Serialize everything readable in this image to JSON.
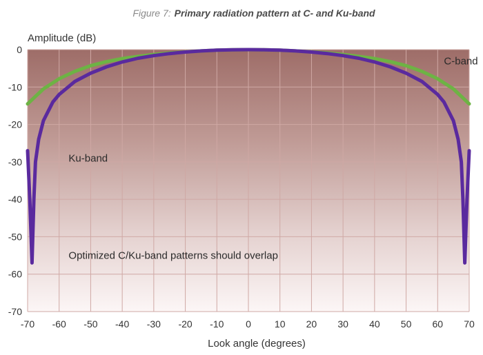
{
  "figure": {
    "prefix": "Figure 7:",
    "title": "Primary radiation pattern at C- and Ku-band"
  },
  "chart_data": {
    "type": "line",
    "ylabel": "Amplitude (dB)",
    "xlabel": "Look angle (degrees)",
    "xlim": [
      -70,
      70
    ],
    "ylim": [
      -70,
      0
    ],
    "xticks": [
      -70,
      -60,
      -50,
      -40,
      -30,
      -20,
      -10,
      0,
      10,
      20,
      30,
      40,
      50,
      60,
      70
    ],
    "yticks": [
      0,
      -10,
      -20,
      -30,
      -40,
      -50,
      -60,
      -70
    ],
    "grid": true,
    "series": [
      {
        "name": "C-band",
        "color": "#6db344",
        "x": [
          -70,
          -65,
          -60,
          -55,
          -50,
          -45,
          -40,
          -35,
          -30,
          -25,
          -20,
          -15,
          -10,
          -5,
          0,
          5,
          10,
          15,
          20,
          25,
          30,
          35,
          40,
          45,
          50,
          55,
          60,
          65,
          70
        ],
        "y": [
          -14.5,
          -10.5,
          -7.8,
          -5.8,
          -4.3,
          -3.2,
          -2.4,
          -1.8,
          -1.3,
          -0.9,
          -0.6,
          -0.35,
          -0.15,
          -0.05,
          0,
          -0.05,
          -0.15,
          -0.35,
          -0.6,
          -0.9,
          -1.3,
          -1.8,
          -2.4,
          -3.2,
          -4.3,
          -5.8,
          -7.8,
          -10.5,
          -14.5
        ]
      },
      {
        "name": "Ku-band",
        "color": "#5a2a9e",
        "x": [
          -70,
          -69.3,
          -68.6,
          -68,
          -67.5,
          -66.5,
          -65,
          -62,
          -60,
          -55,
          -50,
          -45,
          -40,
          -35,
          -30,
          -25,
          -20,
          -15,
          -10,
          -5,
          0,
          5,
          10,
          15,
          20,
          25,
          30,
          35,
          40,
          45,
          50,
          55,
          60,
          62,
          65,
          66.5,
          67.5,
          68,
          68.6,
          69.3,
          70
        ],
        "y": [
          -27,
          -40,
          -57,
          -40,
          -30,
          -24,
          -19,
          -14,
          -12,
          -8.5,
          -6.3,
          -4.6,
          -3.3,
          -2.3,
          -1.6,
          -1.05,
          -0.65,
          -0.35,
          -0.15,
          -0.04,
          0,
          -0.04,
          -0.15,
          -0.35,
          -0.65,
          -1.05,
          -1.6,
          -2.3,
          -3.3,
          -4.6,
          -6.3,
          -8.5,
          -12,
          -14,
          -19,
          -24,
          -30,
          -40,
          -57,
          -40,
          -27
        ]
      }
    ],
    "annotations": [
      {
        "text": "C-band",
        "x": 62,
        "y": -3
      },
      {
        "text": "Ku-band",
        "x": -57,
        "y": -29
      },
      {
        "text": "Optimized C/Ku-band patterns should overlap",
        "x": -57,
        "y": -55
      }
    ]
  }
}
